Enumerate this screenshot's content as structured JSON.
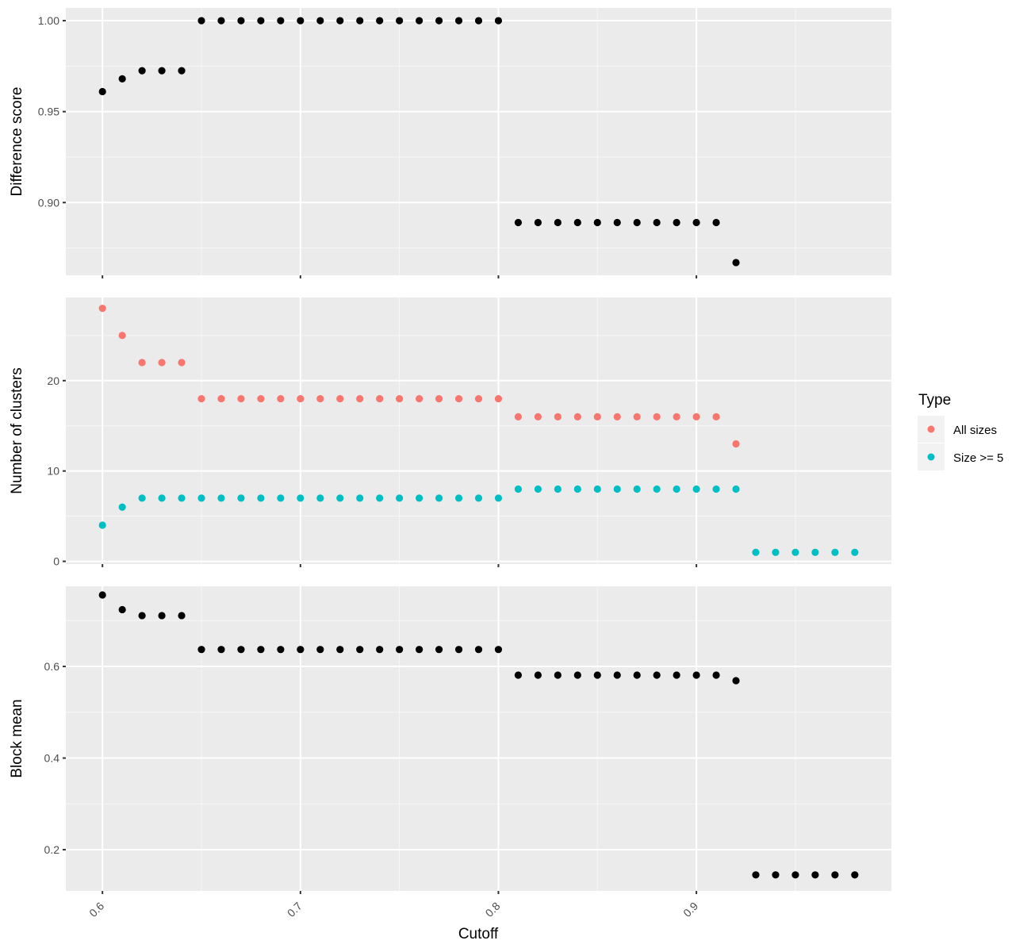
{
  "chart_data": [
    {
      "type": "scatter",
      "ylabel": "Difference score",
      "xlabel": "",
      "ylim": [
        0.86,
        1.007
      ],
      "yticks": [
        "0.90",
        "0.95",
        "1.00"
      ],
      "show_x_tick_labels": false,
      "series": [
        {
          "name": "",
          "color": "#000000",
          "points": [
            [
              0.6,
              0.961
            ],
            [
              0.61,
              0.968
            ],
            [
              0.62,
              0.9725
            ],
            [
              0.63,
              0.9725
            ],
            [
              0.64,
              0.9725
            ],
            [
              0.65,
              1.0
            ],
            [
              0.66,
              1.0
            ],
            [
              0.67,
              1.0
            ],
            [
              0.68,
              1.0
            ],
            [
              0.69,
              1.0
            ],
            [
              0.7,
              1.0
            ],
            [
              0.71,
              1.0
            ],
            [
              0.72,
              1.0
            ],
            [
              0.73,
              1.0
            ],
            [
              0.74,
              1.0
            ],
            [
              0.75,
              1.0
            ],
            [
              0.76,
              1.0
            ],
            [
              0.77,
              1.0
            ],
            [
              0.78,
              1.0
            ],
            [
              0.79,
              1.0
            ],
            [
              0.8,
              1.0
            ],
            [
              0.81,
              0.889
            ],
            [
              0.82,
              0.889
            ],
            [
              0.83,
              0.889
            ],
            [
              0.84,
              0.889
            ],
            [
              0.85,
              0.889
            ],
            [
              0.86,
              0.889
            ],
            [
              0.87,
              0.889
            ],
            [
              0.88,
              0.889
            ],
            [
              0.89,
              0.889
            ],
            [
              0.9,
              0.889
            ],
            [
              0.91,
              0.889
            ],
            [
              0.92,
              0.867
            ]
          ]
        }
      ]
    },
    {
      "type": "scatter",
      "ylabel": "Number of clusters",
      "xlabel": "",
      "ylim": [
        -0.3,
        29.2
      ],
      "yticks": [
        "0",
        "10",
        "20"
      ],
      "show_x_tick_labels": false,
      "series": [
        {
          "name": "All sizes",
          "color": "#F8766D",
          "points": [
            [
              0.6,
              28
            ],
            [
              0.61,
              25
            ],
            [
              0.62,
              22
            ],
            [
              0.63,
              22
            ],
            [
              0.64,
              22
            ],
            [
              0.65,
              18
            ],
            [
              0.66,
              18
            ],
            [
              0.67,
              18
            ],
            [
              0.68,
              18
            ],
            [
              0.69,
              18
            ],
            [
              0.7,
              18
            ],
            [
              0.71,
              18
            ],
            [
              0.72,
              18
            ],
            [
              0.73,
              18
            ],
            [
              0.74,
              18
            ],
            [
              0.75,
              18
            ],
            [
              0.76,
              18
            ],
            [
              0.77,
              18
            ],
            [
              0.78,
              18
            ],
            [
              0.79,
              18
            ],
            [
              0.8,
              18
            ],
            [
              0.81,
              16
            ],
            [
              0.82,
              16
            ],
            [
              0.83,
              16
            ],
            [
              0.84,
              16
            ],
            [
              0.85,
              16
            ],
            [
              0.86,
              16
            ],
            [
              0.87,
              16
            ],
            [
              0.88,
              16
            ],
            [
              0.89,
              16
            ],
            [
              0.9,
              16
            ],
            [
              0.91,
              16
            ],
            [
              0.92,
              13
            ]
          ]
        },
        {
          "name": "Size >= 5",
          "color": "#00BFC4",
          "points": [
            [
              0.6,
              4
            ],
            [
              0.61,
              6
            ],
            [
              0.62,
              7
            ],
            [
              0.63,
              7
            ],
            [
              0.64,
              7
            ],
            [
              0.65,
              7
            ],
            [
              0.66,
              7
            ],
            [
              0.67,
              7
            ],
            [
              0.68,
              7
            ],
            [
              0.69,
              7
            ],
            [
              0.7,
              7
            ],
            [
              0.71,
              7
            ],
            [
              0.72,
              7
            ],
            [
              0.73,
              7
            ],
            [
              0.74,
              7
            ],
            [
              0.75,
              7
            ],
            [
              0.76,
              7
            ],
            [
              0.77,
              7
            ],
            [
              0.78,
              7
            ],
            [
              0.79,
              7
            ],
            [
              0.8,
              7
            ],
            [
              0.81,
              8
            ],
            [
              0.82,
              8
            ],
            [
              0.83,
              8
            ],
            [
              0.84,
              8
            ],
            [
              0.85,
              8
            ],
            [
              0.86,
              8
            ],
            [
              0.87,
              8
            ],
            [
              0.88,
              8
            ],
            [
              0.89,
              8
            ],
            [
              0.9,
              8
            ],
            [
              0.91,
              8
            ],
            [
              0.92,
              8
            ],
            [
              0.93,
              1
            ],
            [
              0.94,
              1
            ],
            [
              0.95,
              1
            ],
            [
              0.96,
              1
            ],
            [
              0.97,
              1
            ],
            [
              0.98,
              1
            ]
          ]
        }
      ]
    },
    {
      "type": "scatter",
      "ylabel": "Block mean",
      "xlabel": "Cutoff",
      "ylim": [
        0.11,
        0.775
      ],
      "yticks": [
        "0.2",
        "0.4",
        "0.6"
      ],
      "show_x_tick_labels": true,
      "series": [
        {
          "name": "",
          "color": "#000000",
          "points": [
            [
              0.6,
              0.756
            ],
            [
              0.61,
              0.724
            ],
            [
              0.62,
              0.711
            ],
            [
              0.63,
              0.711
            ],
            [
              0.64,
              0.711
            ],
            [
              0.65,
              0.637
            ],
            [
              0.66,
              0.637
            ],
            [
              0.67,
              0.637
            ],
            [
              0.68,
              0.637
            ],
            [
              0.69,
              0.637
            ],
            [
              0.7,
              0.637
            ],
            [
              0.71,
              0.637
            ],
            [
              0.72,
              0.637
            ],
            [
              0.73,
              0.637
            ],
            [
              0.74,
              0.637
            ],
            [
              0.75,
              0.637
            ],
            [
              0.76,
              0.637
            ],
            [
              0.77,
              0.637
            ],
            [
              0.78,
              0.637
            ],
            [
              0.79,
              0.637
            ],
            [
              0.8,
              0.637
            ],
            [
              0.81,
              0.581
            ],
            [
              0.82,
              0.581
            ],
            [
              0.83,
              0.581
            ],
            [
              0.84,
              0.581
            ],
            [
              0.85,
              0.581
            ],
            [
              0.86,
              0.581
            ],
            [
              0.87,
              0.581
            ],
            [
              0.88,
              0.581
            ],
            [
              0.89,
              0.581
            ],
            [
              0.9,
              0.581
            ],
            [
              0.91,
              0.581
            ],
            [
              0.92,
              0.569
            ],
            [
              0.93,
              0.145
            ],
            [
              0.94,
              0.145
            ],
            [
              0.95,
              0.145
            ],
            [
              0.96,
              0.145
            ],
            [
              0.97,
              0.145
            ],
            [
              0.98,
              0.145
            ]
          ]
        }
      ]
    }
  ],
  "shared_x": {
    "xlim": [
      0.5815,
      0.9985
    ],
    "xticks": [
      "0.6",
      "0.7",
      "0.8",
      "0.9"
    ]
  },
  "legend": {
    "title": "Type",
    "placement": "right",
    "items": [
      {
        "label": "All sizes",
        "color": "#F8766D"
      },
      {
        "label": "Size >= 5",
        "color": "#00BFC4"
      }
    ]
  },
  "grid": true
}
